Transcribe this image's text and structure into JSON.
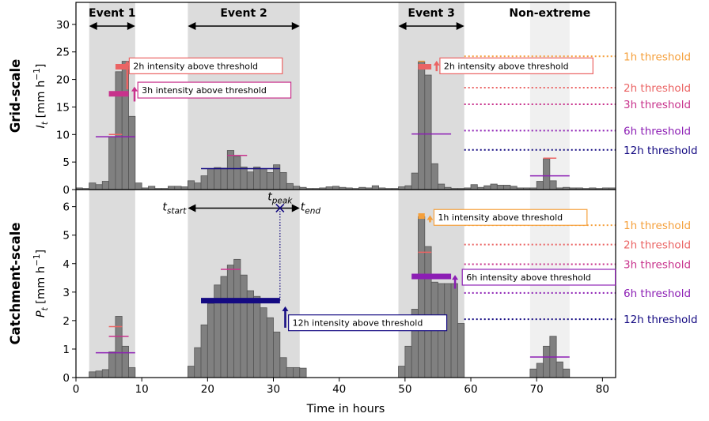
{
  "chart_data": {
    "type": "bar",
    "xlabel": "Time in hours",
    "xlim": [
      0,
      82
    ],
    "xticks": [
      0,
      10,
      20,
      30,
      40,
      50,
      60,
      70,
      80
    ],
    "colors": {
      "bars": "#808080",
      "bar_edge": "#555555",
      "shade": "#dcdcdc",
      "shade_light": "#f0f0f0",
      "h1": "#f5a03c",
      "h2": "#eb6464",
      "h3": "#c8328c",
      "h6": "#8c1eb4",
      "h12": "#140a82"
    },
    "events": [
      {
        "label": "Event 1",
        "start": 2,
        "end": 9,
        "style": "dark"
      },
      {
        "label": "Event 2",
        "start": 17,
        "end": 34,
        "style": "dark"
      },
      {
        "label": "Event 3",
        "start": 49,
        "end": 59,
        "style": "dark"
      },
      {
        "label": "Non-extreme",
        "start": 69,
        "end": 75,
        "style": "light"
      }
    ],
    "panels": [
      {
        "id": "grid",
        "row_label": "Grid-scale",
        "ylabel_var": "I",
        "ylabel_sub": "t",
        "ylabel_unit": " [mm h",
        "ylabel_sup": "−1",
        "ylabel_end": "]",
        "ylim": [
          0,
          34
        ],
        "yticks": [
          0,
          5,
          10,
          15,
          20,
          25,
          30
        ],
        "values": [
          0.3,
          0.2,
          1.2,
          0.9,
          1.5,
          9.6,
          21.4,
          23.3,
          13.3,
          1.2,
          0.3,
          0.6,
          0.2,
          0.2,
          0.6,
          0.6,
          0.5,
          1.6,
          1.2,
          2.5,
          3.8,
          4.0,
          3.9,
          7.1,
          6.0,
          4.1,
          3.2,
          4.1,
          3.8,
          3.1,
          4.5,
          3.1,
          1.1,
          0.6,
          0.4,
          0.2,
          0.2,
          0.3,
          0.5,
          0.6,
          0.4,
          0.3,
          0.2,
          0.4,
          0.3,
          0.7,
          0.3,
          0.2,
          0.2,
          0.5,
          0.7,
          3.0,
          23.2,
          20.8,
          4.7,
          1.0,
          0.4,
          0.2,
          0.2,
          0.3,
          0.9,
          0.4,
          0.7,
          1.0,
          0.8,
          0.8,
          0.6,
          0.3,
          0.3,
          0.3,
          1.5,
          5.6,
          1.6,
          0.3,
          0.4,
          0.3,
          0.3,
          0.2,
          0.3,
          0.2,
          0.3,
          0.3
        ],
        "thresholds": [
          {
            "label": "1h threshold",
            "value": 24.2,
            "color_key": "h1"
          },
          {
            "label": "2h threshold",
            "value": 18.5,
            "color_key": "h2"
          },
          {
            "label": "3h threshold",
            "value": 15.5,
            "color_key": "h3"
          },
          {
            "label": "6h threshold",
            "value": 10.7,
            "color_key": "h6"
          },
          {
            "label": "12h threshold",
            "value": 7.2,
            "color_key": "h12"
          }
        ],
        "window_means": [
          {
            "x0": 6,
            "x1": 8,
            "value": 22.3,
            "color_key": "h2",
            "thick": true
          },
          {
            "x0": 5,
            "x1": 8,
            "value": 17.4,
            "color_key": "h3",
            "thick": true
          },
          {
            "x0": 3,
            "x1": 9,
            "value": 9.6,
            "color_key": "h6"
          },
          {
            "x0": 5,
            "x1": 7,
            "value": 10.0,
            "color_key": "h2"
          },
          {
            "x0": 23,
            "x1": 26,
            "value": 6.2,
            "color_key": "h3"
          },
          {
            "x0": 19,
            "x1": 31,
            "value": 3.8,
            "color_key": "h12"
          },
          {
            "x0": 52,
            "x1": 54,
            "value": 22.3,
            "color_key": "h2",
            "thick": true
          },
          {
            "x0": 52,
            "x1": 53,
            "value": 23.3,
            "color_key": "h1"
          },
          {
            "x0": 51,
            "x1": 57,
            "value": 10.1,
            "color_key": "h6"
          },
          {
            "x0": 71,
            "x1": 73,
            "value": 5.7,
            "color_key": "h2"
          },
          {
            "x0": 69,
            "x1": 75,
            "value": 2.5,
            "color_key": "h6"
          }
        ],
        "annotations": [
          {
            "text": "2h intensity above threshold",
            "x": 8.1,
            "y": 23.9,
            "arrow_x": 7.8,
            "arrow_y0": 18.2,
            "arrow_y1": 23.4,
            "color_key": "h2"
          },
          {
            "text": "3h intensity above threshold",
            "x": 9.4,
            "y": 19.5,
            "arrow_x": 8.9,
            "arrow_y0": 16.0,
            "arrow_y1": 18.7,
            "color_key": "h3"
          },
          {
            "text": "2h intensity above threshold",
            "x": 55.3,
            "y": 23.9,
            "arrow_x": 54.8,
            "arrow_y0": 21.5,
            "arrow_y1": 23.4,
            "color_key": "h2"
          }
        ]
      },
      {
        "id": "catchment",
        "row_label": "Catchment-scale",
        "ylabel_var": "P",
        "ylabel_sub": "t",
        "ylabel_unit": " [mm h",
        "ylabel_sup": "−1",
        "ylabel_end": "]",
        "ylim": [
          0,
          6.6
        ],
        "yticks": [
          0,
          1,
          2,
          3,
          4,
          5,
          6
        ],
        "values": [
          0,
          0,
          0.2,
          0.23,
          0.28,
          0.9,
          2.15,
          1.1,
          0.35,
          0,
          0,
          0,
          0,
          0,
          0,
          0,
          0,
          0.4,
          1.05,
          1.85,
          2.6,
          3.25,
          3.55,
          3.95,
          4.15,
          3.6,
          3.05,
          2.85,
          2.45,
          2.1,
          1.6,
          0.7,
          0.35,
          0.35,
          0.33,
          0,
          0,
          0,
          0,
          0,
          0,
          0,
          0,
          0,
          0,
          0,
          0,
          0,
          0,
          0.4,
          1.1,
          2.4,
          5.65,
          4.6,
          3.35,
          3.3,
          3.3,
          3.3,
          1.9,
          0,
          0,
          0,
          0,
          0,
          0,
          0,
          0,
          0,
          0,
          0.3,
          0.5,
          1.1,
          1.45,
          0.55,
          0.3,
          0,
          0,
          0,
          0,
          0,
          0,
          0
        ],
        "thresholds": [
          {
            "label": "1h threshold",
            "value": 5.35,
            "color_key": "h1"
          },
          {
            "label": "2h threshold",
            "value": 4.67,
            "color_key": "h2"
          },
          {
            "label": "3h threshold",
            "value": 3.98,
            "color_key": "h3"
          },
          {
            "label": "6h threshold",
            "value": 2.97,
            "color_key": "h6"
          },
          {
            "label": "12h threshold",
            "value": 2.05,
            "color_key": "h12"
          }
        ],
        "window_means": [
          {
            "x0": 5,
            "x1": 7,
            "value": 1.79,
            "color_key": "h2"
          },
          {
            "x0": 5,
            "x1": 8,
            "value": 1.45,
            "color_key": "h3"
          },
          {
            "x0": 3,
            "x1": 9,
            "value": 0.87,
            "color_key": "h6"
          },
          {
            "x0": 22,
            "x1": 25,
            "value": 3.8,
            "color_key": "h3"
          },
          {
            "x0": 19,
            "x1": 31,
            "value": 2.7,
            "color_key": "h12",
            "thick": true
          },
          {
            "x0": 52,
            "x1": 53,
            "value": 5.67,
            "color_key": "h1",
            "thick": true
          },
          {
            "x0": 52,
            "x1": 54,
            "value": 4.4,
            "color_key": "h2"
          },
          {
            "x0": 51,
            "x1": 57,
            "value": 3.55,
            "color_key": "h6",
            "thick": true
          },
          {
            "x0": 69,
            "x1": 75,
            "value": 0.72,
            "color_key": "h6"
          }
        ],
        "annotations": [
          {
            "text": "1h intensity above threshold",
            "x": 54.4,
            "y": 5.9,
            "arrow_x": 53.8,
            "arrow_y0": 5.45,
            "arrow_y1": 5.7,
            "color_key": "h1"
          },
          {
            "text": "6h intensity above threshold",
            "x": 58.7,
            "y": 3.8,
            "arrow_x": 57.6,
            "arrow_y0": 3.12,
            "arrow_y1": 3.6,
            "color_key": "h6"
          },
          {
            "text": "12h intensity above threshold",
            "x": 32.3,
            "y": 2.2,
            "arrow_x": 31.8,
            "arrow_y0": 1.75,
            "arrow_y1": 2.5,
            "color_key": "h12"
          }
        ],
        "peak": {
          "x": 31,
          "y": 5.95,
          "start_x": 17,
          "end_x": 34,
          "label_start": "start",
          "label_peak": "peak",
          "label_end": "end",
          "var": "t"
        }
      }
    ]
  }
}
